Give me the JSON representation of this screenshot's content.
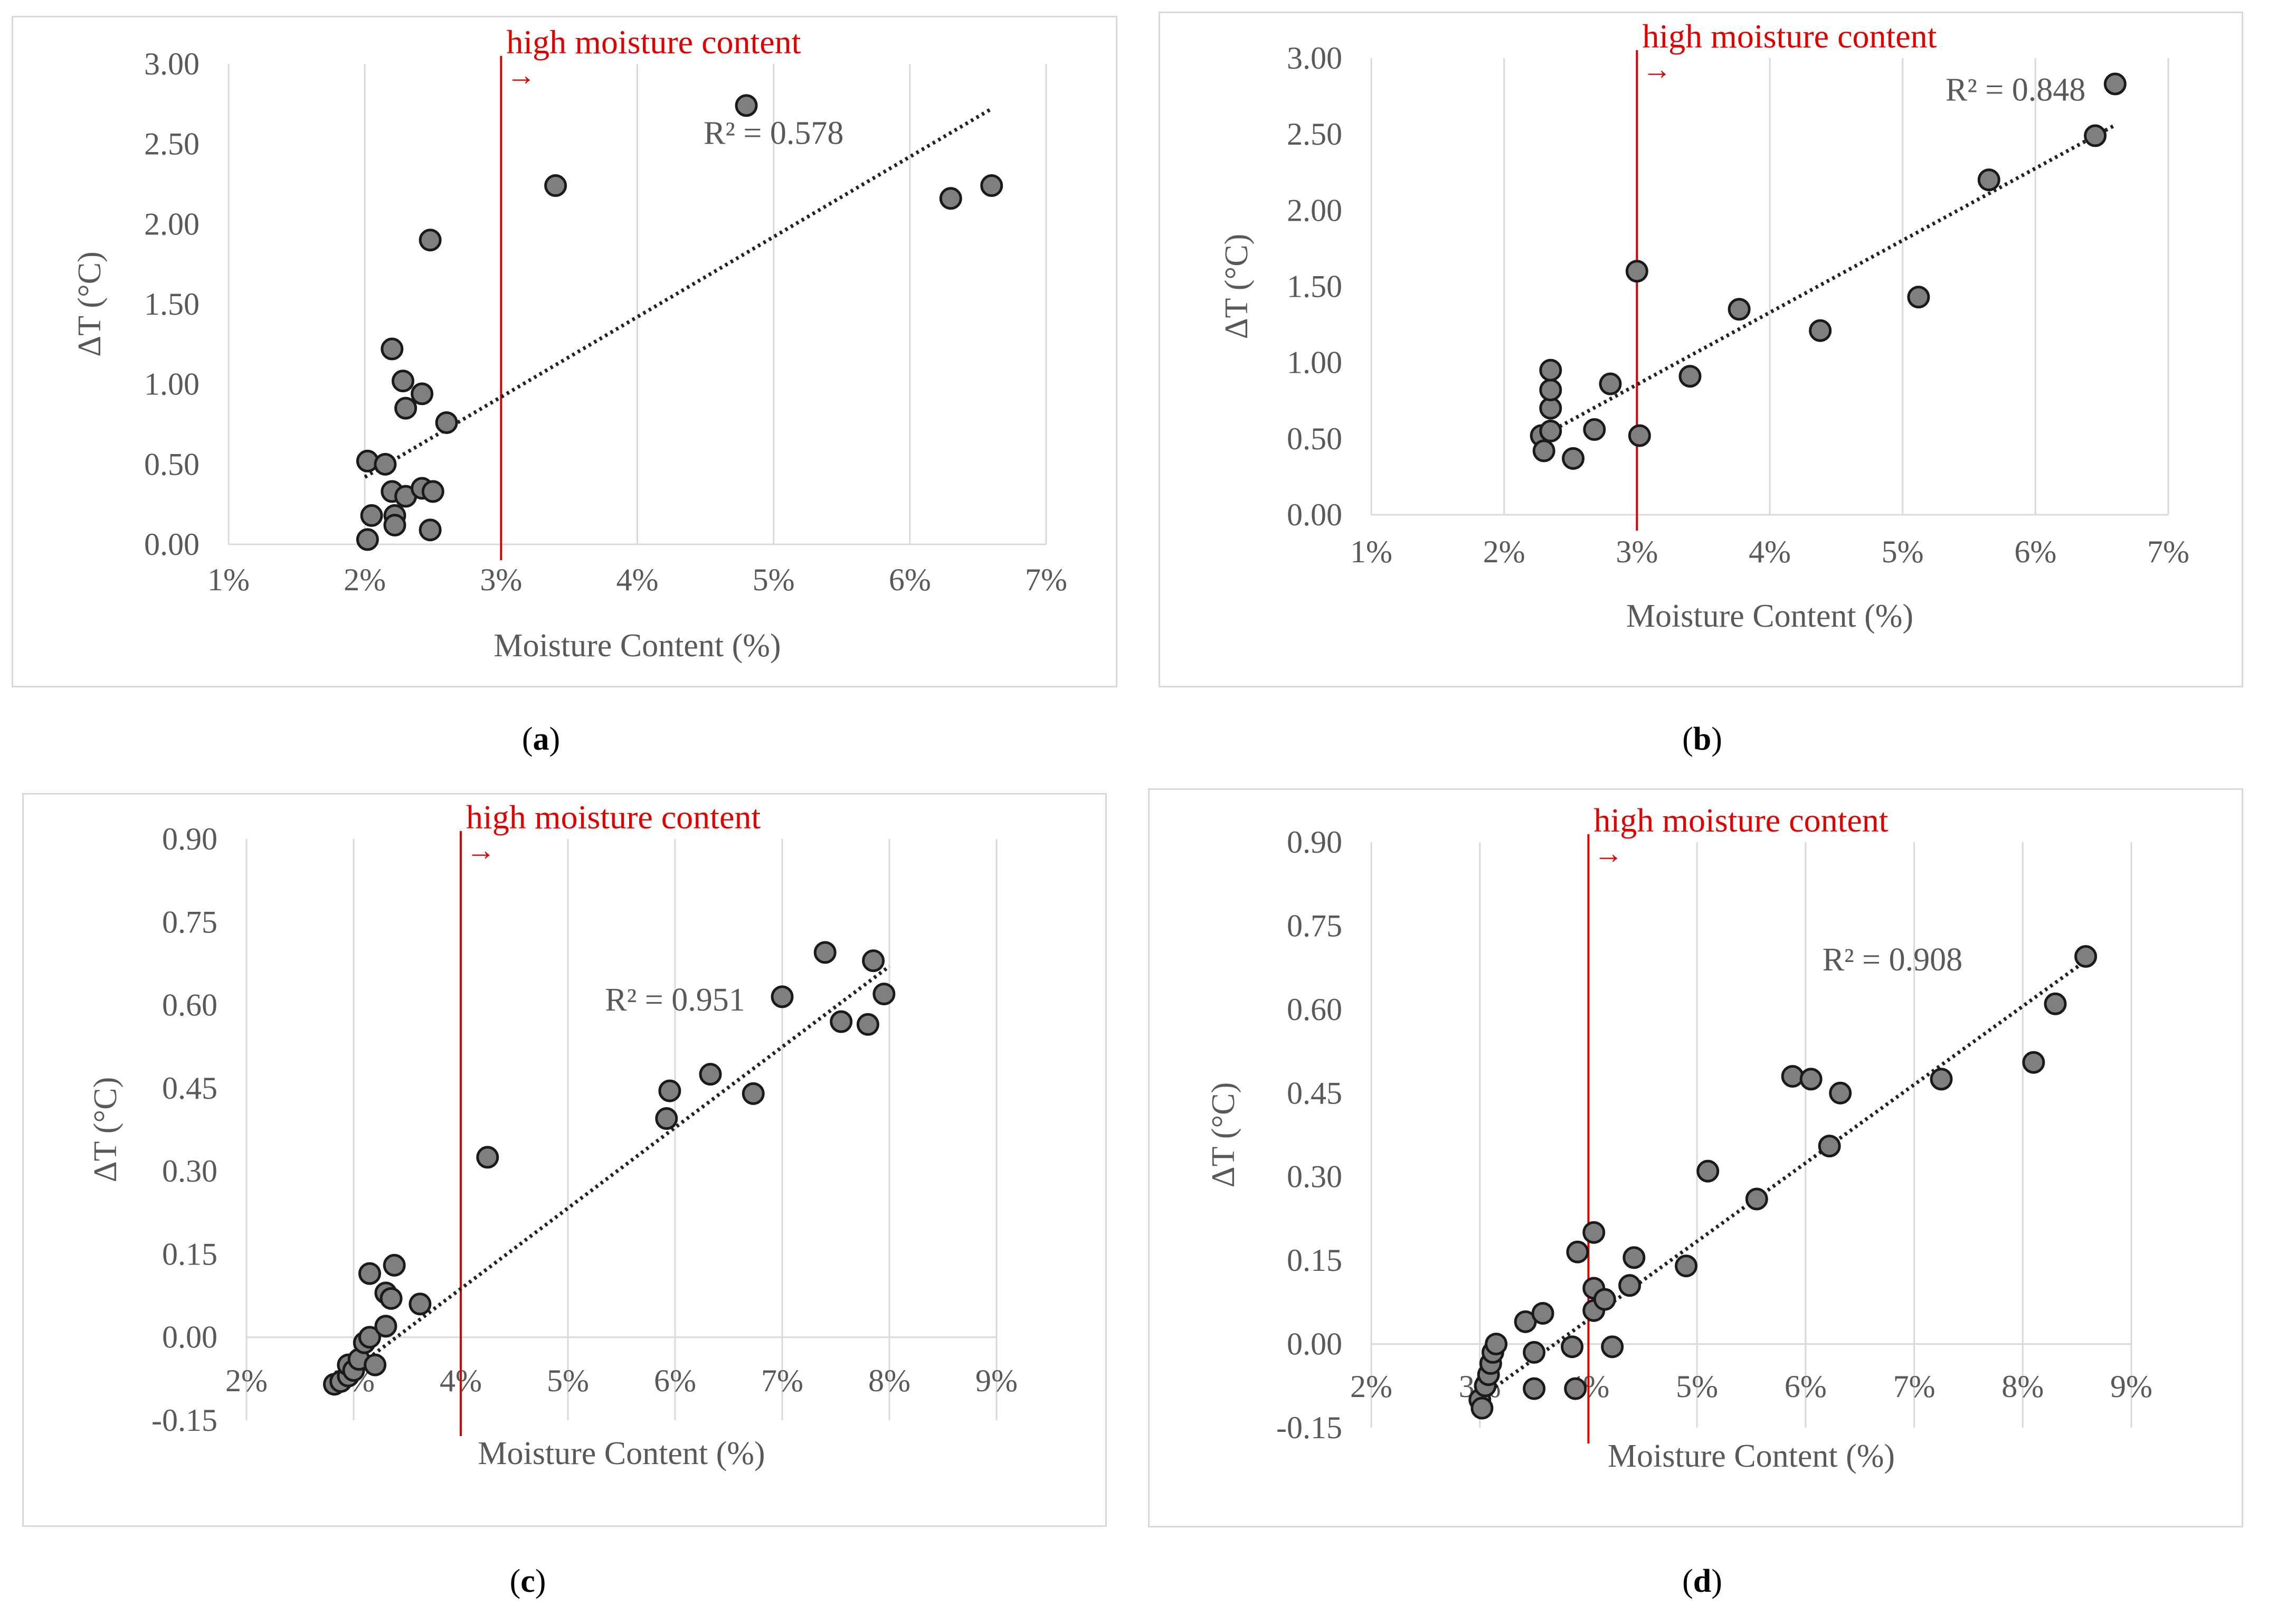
{
  "chart_data": [
    {
      "id": "a",
      "panel_label": "a",
      "type": "scatter",
      "title": "",
      "xlabel": "Moisture Content (%)",
      "ylabel": "ΔT (°C)",
      "xlim": [
        1,
        7
      ],
      "ylim": [
        0,
        3
      ],
      "x_ticks": [
        1,
        2,
        3,
        4,
        5,
        6,
        7
      ],
      "x_tick_labels": [
        "1%",
        "2%",
        "3%",
        "4%",
        "5%",
        "6%",
        "7%"
      ],
      "y_ticks": [
        0,
        0.5,
        1.0,
        1.5,
        2.0,
        2.5,
        3.0
      ],
      "y_tick_labels": [
        "0.00",
        "0.50",
        "1.00",
        "1.50",
        "2.00",
        "2.50",
        "3.00"
      ],
      "grid": "vertical",
      "threshold_x": 3,
      "threshold_label": "high moisture content",
      "threshold_arrow": "→",
      "r_squared_label": "R² = 0.578",
      "r_squared_pos": [
        5.0,
        2.5
      ],
      "trend": {
        "x1": 2.0,
        "y1": 0.42,
        "x2": 6.6,
        "y2": 2.72
      },
      "points": [
        [
          2.02,
          0.52
        ],
        [
          2.05,
          0.18
        ],
        [
          2.02,
          0.03
        ],
        [
          2.15,
          0.5
        ],
        [
          2.2,
          1.22
        ],
        [
          2.2,
          0.33
        ],
        [
          2.22,
          0.18
        ],
        [
          2.22,
          0.12
        ],
        [
          2.28,
          1.02
        ],
        [
          2.3,
          0.85
        ],
        [
          2.3,
          0.3
        ],
        [
          2.42,
          0.94
        ],
        [
          2.42,
          0.35
        ],
        [
          2.5,
          0.33
        ],
        [
          2.48,
          0.09
        ],
        [
          2.48,
          1.9
        ],
        [
          2.6,
          0.76
        ],
        [
          3.4,
          2.24
        ],
        [
          4.8,
          2.74
        ],
        [
          6.3,
          2.16
        ],
        [
          6.6,
          2.24
        ]
      ]
    },
    {
      "id": "b",
      "panel_label": "b",
      "type": "scatter",
      "title": "",
      "xlabel": "Moisture Content (%)",
      "ylabel": "ΔT (°C)",
      "xlim": [
        1,
        7
      ],
      "ylim": [
        0,
        3
      ],
      "x_ticks": [
        1,
        2,
        3,
        4,
        5,
        6,
        7
      ],
      "x_tick_labels": [
        "1%",
        "2%",
        "3%",
        "4%",
        "5%",
        "6%",
        "7%"
      ],
      "y_ticks": [
        0,
        0.5,
        1.0,
        1.5,
        2.0,
        2.5,
        3.0
      ],
      "y_tick_labels": [
        "0.00",
        "0.50",
        "1.00",
        "1.50",
        "2.00",
        "2.50",
        "3.00"
      ],
      "grid": "vertical",
      "threshold_x": 3,
      "threshold_label": "high moisture content",
      "threshold_arrow": "→",
      "r_squared_label": "R² = 0.848",
      "r_squared_pos": [
        5.85,
        2.72
      ],
      "trend": {
        "x1": 2.25,
        "y1": 0.5,
        "x2": 6.6,
        "y2": 2.56
      },
      "points": [
        [
          2.28,
          0.52
        ],
        [
          2.3,
          0.42
        ],
        [
          2.35,
          0.55
        ],
        [
          2.35,
          0.7
        ],
        [
          2.35,
          0.82
        ],
        [
          2.35,
          0.95
        ],
        [
          2.52,
          0.37
        ],
        [
          2.68,
          0.56
        ],
        [
          2.8,
          0.86
        ],
        [
          3.0,
          1.6
        ],
        [
          3.02,
          0.52
        ],
        [
          3.4,
          0.91
        ],
        [
          3.77,
          1.35
        ],
        [
          4.38,
          1.21
        ],
        [
          5.12,
          1.43
        ],
        [
          5.65,
          2.2
        ],
        [
          6.45,
          2.49
        ],
        [
          6.6,
          2.83
        ]
      ]
    },
    {
      "id": "c",
      "panel_label": "c",
      "type": "scatter",
      "title": "",
      "xlabel": "Moisture Content (%)",
      "ylabel": "ΔT (°C)",
      "xlim": [
        2,
        9
      ],
      "ylim": [
        -0.15,
        0.9
      ],
      "x_ticks": [
        2,
        3,
        4,
        5,
        6,
        7,
        8,
        9
      ],
      "x_tick_labels": [
        "2%",
        "3%",
        "4%",
        "5%",
        "6%",
        "7%",
        "8%",
        "9%"
      ],
      "y_ticks": [
        -0.15,
        0,
        0.15,
        0.3,
        0.45,
        0.6,
        0.75,
        0.9
      ],
      "y_tick_labels": [
        "-0.15",
        "0.00",
        "0.15",
        "0.30",
        "0.45",
        "0.60",
        "0.75",
        "0.90"
      ],
      "grid": "vertical",
      "threshold_x": 4,
      "threshold_label": "high moisture content",
      "threshold_arrow": "→",
      "r_squared_label": "R² = 0.951",
      "r_squared_pos": [
        6.0,
        0.59
      ],
      "trend": {
        "x1": 2.85,
        "y1": -0.08,
        "x2": 8.0,
        "y2": 0.67
      },
      "points": [
        [
          2.82,
          -0.085
        ],
        [
          2.88,
          -0.08
        ],
        [
          2.95,
          -0.07
        ],
        [
          2.95,
          -0.05
        ],
        [
          3.0,
          -0.06
        ],
        [
          3.05,
          -0.04
        ],
        [
          3.1,
          -0.01
        ],
        [
          3.15,
          0.0
        ],
        [
          3.2,
          -0.05
        ],
        [
          3.15,
          0.115
        ],
        [
          3.3,
          0.08
        ],
        [
          3.3,
          0.02
        ],
        [
          3.35,
          0.07
        ],
        [
          3.38,
          0.13
        ],
        [
          3.62,
          0.06
        ],
        [
          4.25,
          0.325
        ],
        [
          5.92,
          0.395
        ],
        [
          5.95,
          0.445
        ],
        [
          6.33,
          0.475
        ],
        [
          6.73,
          0.44
        ],
        [
          7.0,
          0.615
        ],
        [
          7.4,
          0.695
        ],
        [
          7.55,
          0.57
        ],
        [
          7.8,
          0.565
        ],
        [
          7.85,
          0.68
        ],
        [
          7.95,
          0.62
        ]
      ]
    },
    {
      "id": "d",
      "panel_label": "d",
      "type": "scatter",
      "title": "",
      "xlabel": "Moisture Content (%)",
      "ylabel": "ΔT (°C)",
      "xlim": [
        2,
        9
      ],
      "ylim": [
        -0.15,
        0.9
      ],
      "x_ticks": [
        2,
        3,
        4,
        5,
        6,
        7,
        8,
        9
      ],
      "x_tick_labels": [
        "2%",
        "3%",
        "4%",
        "5%",
        "6%",
        "7%",
        "8%",
        "9%"
      ],
      "y_ticks": [
        -0.15,
        0,
        0.15,
        0.3,
        0.45,
        0.6,
        0.75,
        0.9
      ],
      "y_tick_labels": [
        "-0.15",
        "0.00",
        "0.15",
        "0.30",
        "0.45",
        "0.60",
        "0.75",
        "0.90"
      ],
      "grid": "vertical",
      "threshold_x": 4,
      "threshold_label": "high moisture content",
      "threshold_arrow": "→",
      "r_squared_label": "R² = 0.908",
      "r_squared_pos": [
        6.8,
        0.67
      ],
      "trend": {
        "x1": 3.05,
        "y1": -0.09,
        "x2": 8.6,
        "y2": 0.69
      },
      "points": [
        [
          3.0,
          -0.1
        ],
        [
          3.02,
          -0.115
        ],
        [
          3.05,
          -0.075
        ],
        [
          3.08,
          -0.055
        ],
        [
          3.1,
          -0.035
        ],
        [
          3.12,
          -0.015
        ],
        [
          3.15,
          0.0
        ],
        [
          3.42,
          0.04
        ],
        [
          3.5,
          -0.015
        ],
        [
          3.5,
          -0.08
        ],
        [
          3.58,
          0.055
        ],
        [
          3.85,
          -0.005
        ],
        [
          3.88,
          -0.08
        ],
        [
          3.9,
          0.165
        ],
        [
          4.05,
          0.2
        ],
        [
          4.05,
          0.06
        ],
        [
          4.05,
          0.1
        ],
        [
          4.15,
          0.08
        ],
        [
          4.22,
          -0.005
        ],
        [
          4.38,
          0.105
        ],
        [
          4.42,
          0.155
        ],
        [
          4.9,
          0.14
        ],
        [
          5.1,
          0.31
        ],
        [
          5.55,
          0.26
        ],
        [
          5.88,
          0.48
        ],
        [
          6.05,
          0.475
        ],
        [
          6.22,
          0.355
        ],
        [
          6.32,
          0.45
        ],
        [
          7.25,
          0.475
        ],
        [
          8.1,
          0.505
        ],
        [
          8.3,
          0.61
        ],
        [
          8.58,
          0.695
        ]
      ]
    }
  ]
}
